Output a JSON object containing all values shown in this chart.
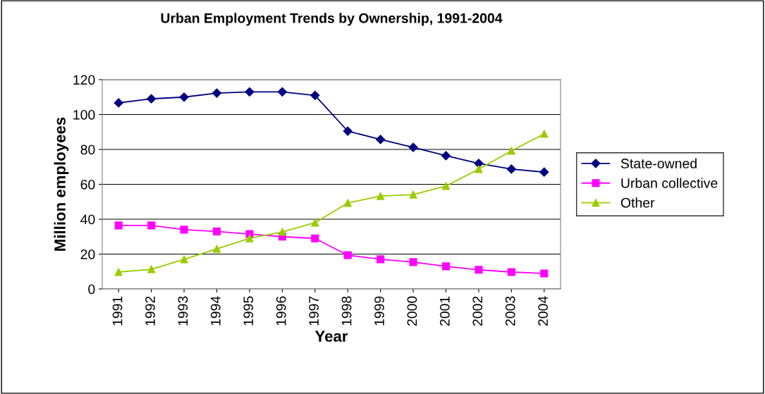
{
  "chart_data": {
    "type": "line",
    "title": "Urban Employment Trends by Ownership, 1991-2004",
    "xlabel": "Year",
    "ylabel": "Million employees",
    "categories": [
      "1991",
      "1992",
      "1993",
      "1994",
      "1995",
      "1996",
      "1997",
      "1998",
      "1999",
      "2000",
      "2001",
      "2002",
      "2003",
      "2004"
    ],
    "series": [
      {
        "name": "State-owned",
        "color": "#000080",
        "marker": "diamond",
        "values": [
          106.7,
          109,
          110,
          112.3,
          113,
          113,
          111,
          90.5,
          85.7,
          81.2,
          76.4,
          72,
          68.7,
          67
        ]
      },
      {
        "name": "Urban collective",
        "color": "#ff00ff",
        "marker": "square",
        "values": [
          36.4,
          36.4,
          34,
          33,
          31.5,
          30,
          29,
          19.4,
          17,
          15.4,
          13,
          11,
          9.7,
          8.9
        ]
      },
      {
        "name": "Other",
        "color": "#99cc00",
        "marker": "triangle",
        "values": [
          9.7,
          11.3,
          17,
          23,
          29,
          32.7,
          38,
          49.3,
          53.3,
          54.1,
          59,
          68.7,
          79.2,
          88.9
        ]
      }
    ],
    "ylim": [
      0,
      120
    ],
    "yticks": [
      0,
      20,
      40,
      60,
      80,
      100,
      120
    ],
    "grid": "y",
    "legend": "right",
    "line_style": "solid"
  }
}
